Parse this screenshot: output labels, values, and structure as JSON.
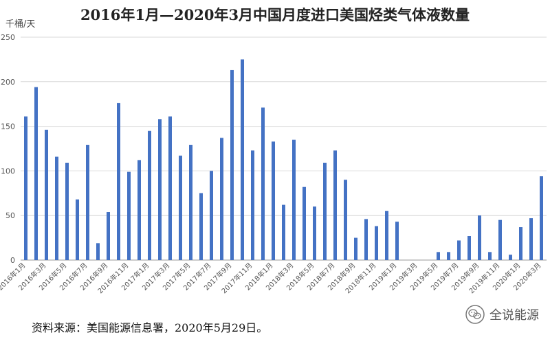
{
  "chart_data": {
    "type": "bar",
    "title": "2016年1月—2020年3月中国月度进口美国烃类气体液数量",
    "ylabel": "千桶/天",
    "ylim": [
      0,
      250
    ],
    "yticks": [
      0,
      50,
      100,
      150,
      200,
      250
    ],
    "grid": true,
    "bar_color": "#4472C4",
    "categories": [
      "2016年1月",
      "2016年2月",
      "2016年3月",
      "2016年4月",
      "2016年5月",
      "2016年6月",
      "2016年7月",
      "2016年8月",
      "2016年9月",
      "2016年10月",
      "2016年11月",
      "2016年12月",
      "2017年1月",
      "2017年2月",
      "2017年3月",
      "2017年4月",
      "2017年5月",
      "2017年6月",
      "2017年7月",
      "2017年8月",
      "2017年9月",
      "2017年10月",
      "2017年11月",
      "2017年12月",
      "2018年1月",
      "2018年2月",
      "2018年3月",
      "2018年4月",
      "2018年5月",
      "2018年6月",
      "2018年7月",
      "2018年8月",
      "2018年9月",
      "2018年10月",
      "2018年11月",
      "2018年12月",
      "2019年1月",
      "2019年2月",
      "2019年3月",
      "2019年4月",
      "2019年5月",
      "2019年6月",
      "2019年7月",
      "2019年8月",
      "2019年9月",
      "2019年10月",
      "2019年11月",
      "2019年12月",
      "2020年1月",
      "2020年2月",
      "2020年3月"
    ],
    "xtick_labels": [
      "2016年1月",
      "2016年3月",
      "2016年5月",
      "2016年7月",
      "2016年9月",
      "2016年11月",
      "2017年1月",
      "2017年3月",
      "2017年5月",
      "2017年7月",
      "2017年9月",
      "2017年11月",
      "2018年1月",
      "2018年3月",
      "2018年5月",
      "2018年7月",
      "2018年9月",
      "2018年11月",
      "2019年1月",
      "2019年3月",
      "2019年5月",
      "2019年7月",
      "2019年9月",
      "2019年11月",
      "2020年1月",
      "2020年3月"
    ],
    "values": [
      161,
      194,
      146,
      116,
      109,
      68,
      129,
      19,
      54,
      176,
      99,
      112,
      145,
      158,
      161,
      117,
      129,
      75,
      100,
      137,
      213,
      225,
      123,
      171,
      133,
      62,
      135,
      82,
      60,
      109,
      123,
      90,
      25,
      46,
      38,
      55,
      43,
      0,
      0,
      0,
      9,
      9,
      22,
      27,
      50,
      9,
      45,
      6,
      37,
      47,
      94
    ]
  },
  "source_note": "资料来源：美国能源信息署，2020年5月29日。",
  "watermark": {
    "text": "全说能源",
    "logo_icon": "wechat-logo-icon"
  }
}
